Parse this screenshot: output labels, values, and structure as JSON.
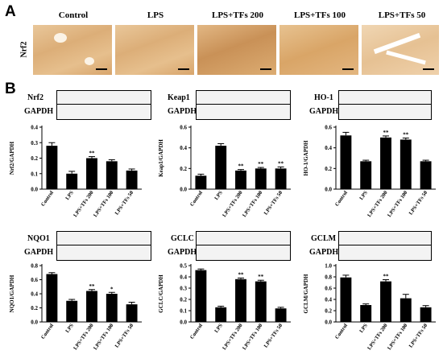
{
  "panel_a": {
    "letter": "A",
    "row_label": "Nrf2",
    "columns": [
      "Control",
      "LPS",
      "LPS+TFs 200",
      "LPS+TFs 100",
      "LPS+TFs 50"
    ]
  },
  "panel_b": {
    "letter": "B",
    "blots": [
      {
        "target": "Nrf2",
        "loading": "GAPDH"
      },
      {
        "target": "Keap1",
        "loading": "GAPDH"
      },
      {
        "target": "HO-1",
        "loading": "GAPDH"
      },
      {
        "target": "NQO1",
        "loading": "GAPDH"
      },
      {
        "target": "GCLC",
        "loading": "GAPDH"
      },
      {
        "target": "GCLM",
        "loading": "GAPDH"
      }
    ]
  },
  "chart_data": [
    {
      "type": "bar",
      "ylabel": "Nrf2/GAPDH",
      "ylim": [
        0,
        0.4
      ],
      "yticks": [
        "0.0",
        "0.1",
        "0.2",
        "0.3",
        "0.4"
      ],
      "categories": [
        "Control",
        "LPS",
        "LPS+TFs 200",
        "LPS+TFs 100",
        "LPS+TFs 50"
      ],
      "values": [
        0.28,
        0.1,
        0.2,
        0.18,
        0.12
      ],
      "errors": [
        0.02,
        0.015,
        0.01,
        0.01,
        0.01
      ],
      "annotations": [
        "",
        "##",
        "**",
        "",
        ""
      ]
    },
    {
      "type": "bar",
      "ylabel": "Keap1/GAPDH",
      "ylim": [
        0,
        0.6
      ],
      "yticks": [
        "0.0",
        "0.2",
        "0.4",
        "0.6"
      ],
      "categories": [
        "Control",
        "LPS",
        "LPS+TFs 200",
        "LPS+TFs 100",
        "LPS+TFs 50"
      ],
      "values": [
        0.13,
        0.42,
        0.18,
        0.2,
        0.2
      ],
      "errors": [
        0.015,
        0.02,
        0.01,
        0.01,
        0.015
      ],
      "annotations": [
        "",
        "##",
        "**",
        "**",
        "**"
      ]
    },
    {
      "type": "bar",
      "ylabel": "HO-1/GAPDH",
      "ylim": [
        0,
        0.6
      ],
      "yticks": [
        "0.0",
        "0.2",
        "0.4",
        "0.6"
      ],
      "categories": [
        "Control",
        "LPS",
        "LPS+TFs 200",
        "LPS+TFs 100",
        "LPS+TFs 50"
      ],
      "values": [
        0.52,
        0.27,
        0.5,
        0.48,
        0.27
      ],
      "errors": [
        0.03,
        0.01,
        0.015,
        0.015,
        0.01
      ],
      "annotations": [
        "",
        "##",
        "**",
        "**",
        ""
      ]
    },
    {
      "type": "bar",
      "ylabel": "NQO1/GAPDH",
      "ylim": [
        0,
        0.8
      ],
      "yticks": [
        "0.0",
        "0.2",
        "0.4",
        "0.6",
        "0.8"
      ],
      "categories": [
        "Control",
        "LPS",
        "LPS+TFs 200",
        "LPS+TFs 100",
        "LPS+TFs 50"
      ],
      "values": [
        0.68,
        0.3,
        0.44,
        0.4,
        0.25
      ],
      "errors": [
        0.02,
        0.02,
        0.02,
        0.02,
        0.03
      ],
      "annotations": [
        "",
        "##",
        "**",
        "*",
        ""
      ]
    },
    {
      "type": "bar",
      "ylabel": "GCLC/GAPDH",
      "ylim": [
        0,
        0.5
      ],
      "yticks": [
        "0.0",
        "0.1",
        "0.2",
        "0.3",
        "0.4",
        "0.5"
      ],
      "categories": [
        "Control",
        "LPS",
        "LPS+TFs 200",
        "LPS+TFs 100",
        "LPS+TFs 50"
      ],
      "values": [
        0.46,
        0.13,
        0.38,
        0.36,
        0.12
      ],
      "errors": [
        0.01,
        0.01,
        0.01,
        0.01,
        0.01
      ],
      "annotations": [
        "",
        "##",
        "**",
        "**",
        ""
      ]
    },
    {
      "type": "bar",
      "ylabel": "GCLM/GAPDH",
      "ylim": [
        0,
        1.0
      ],
      "yticks": [
        "0.0",
        "0.2",
        "0.4",
        "0.6",
        "0.8",
        "1.0"
      ],
      "categories": [
        "Control",
        "LPS",
        "LPS+TFs 200",
        "LPS+TFs 100",
        "LPS+TFs 50"
      ],
      "values": [
        0.79,
        0.3,
        0.72,
        0.42,
        0.26
      ],
      "errors": [
        0.04,
        0.02,
        0.03,
        0.07,
        0.03
      ],
      "annotations": [
        "",
        "##",
        "**",
        "",
        ""
      ]
    }
  ]
}
